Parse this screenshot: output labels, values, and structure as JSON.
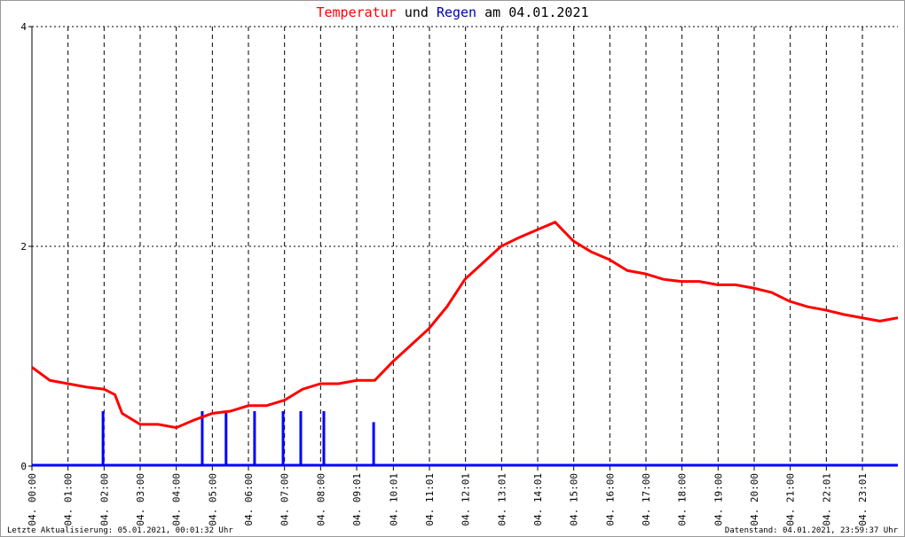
{
  "chart_data": {
    "type": "line",
    "title_connector": "und",
    "title_date": "am 04.01.2021",
    "footer_left": "Letzte Aktualisierung: 05.01.2021, 00:01:32 Uhr",
    "footer_right": "Datenstand: 04.01.2021, 23:59:37 Uhr",
    "xlim": [
      0,
      24
    ],
    "ylim": [
      0,
      4
    ],
    "yticks": [
      0,
      2,
      4
    ],
    "xticks": [
      {
        "value": 0,
        "label": "04. 00:00"
      },
      {
        "value": 1,
        "label": "04. 01:00"
      },
      {
        "value": 2,
        "label": "04. 02:00"
      },
      {
        "value": 3,
        "label": "04. 03:00"
      },
      {
        "value": 4,
        "label": "04. 04:00"
      },
      {
        "value": 5,
        "label": "04. 05:00"
      },
      {
        "value": 6,
        "label": "04. 06:00"
      },
      {
        "value": 7,
        "label": "04. 07:00"
      },
      {
        "value": 8,
        "label": "04. 08:00"
      },
      {
        "value": 9,
        "label": "04. 09:01"
      },
      {
        "value": 10.0167,
        "label": "04. 10:01"
      },
      {
        "value": 11.0167,
        "label": "04. 11:01"
      },
      {
        "value": 12.0167,
        "label": "04. 12:01"
      },
      {
        "value": 13.0167,
        "label": "04. 13:01"
      },
      {
        "value": 14.0167,
        "label": "04. 14:01"
      },
      {
        "value": 15.0167,
        "label": "04. 15:00"
      },
      {
        "value": 16.0167,
        "label": "04. 16:00"
      },
      {
        "value": 17.0167,
        "label": "04. 17:00"
      },
      {
        "value": 18.0167,
        "label": "04. 18:00"
      },
      {
        "value": 19.0167,
        "label": "04. 19:00"
      },
      {
        "value": 20.0167,
        "label": "04. 20:00"
      },
      {
        "value": 21.0167,
        "label": "04. 21:00"
      },
      {
        "value": 22.0167,
        "label": "04. 22:01"
      },
      {
        "value": 23.0167,
        "label": "04. 23:01"
      }
    ],
    "grid": true,
    "series": [
      {
        "name": "Temperatur",
        "type": "line",
        "color": "#ff0000",
        "x": [
          0,
          0.5,
          1,
          1.5,
          2,
          2.3,
          2.5,
          3,
          3.5,
          4,
          4.5,
          5,
          5.5,
          6,
          6.5,
          7,
          7.5,
          8,
          8.5,
          9,
          9.5,
          10,
          10.5,
          11,
          11.5,
          12,
          12.5,
          13,
          13.5,
          14,
          14.5,
          15,
          15.5,
          16,
          16.5,
          17,
          17.5,
          18,
          18.5,
          19,
          19.5,
          20,
          20.5,
          21,
          21.5,
          22,
          22.5,
          23,
          23.5,
          24
        ],
        "values": [
          0.9,
          0.78,
          0.75,
          0.72,
          0.7,
          0.65,
          0.48,
          0.38,
          0.38,
          0.35,
          0.42,
          0.48,
          0.5,
          0.55,
          0.55,
          0.6,
          0.7,
          0.75,
          0.75,
          0.78,
          0.78,
          0.95,
          1.1,
          1.25,
          1.45,
          1.7,
          1.85,
          2.0,
          2.08,
          2.15,
          2.22,
          2.05,
          1.95,
          1.88,
          1.78,
          1.75,
          1.7,
          1.68,
          1.68,
          1.65,
          1.65,
          1.62,
          1.58,
          1.5,
          1.45,
          1.42,
          1.38,
          1.35,
          1.32,
          1.35
        ]
      },
      {
        "name": "Regen",
        "type": "bar",
        "color": "#0000ff",
        "x": [
          1.97,
          4.72,
          5.38,
          6.17,
          6.96,
          7.45,
          8.09,
          9.47
        ],
        "values": [
          0.5,
          0.5,
          0.5,
          0.5,
          0.5,
          0.5,
          0.5,
          0.4
        ]
      }
    ]
  }
}
